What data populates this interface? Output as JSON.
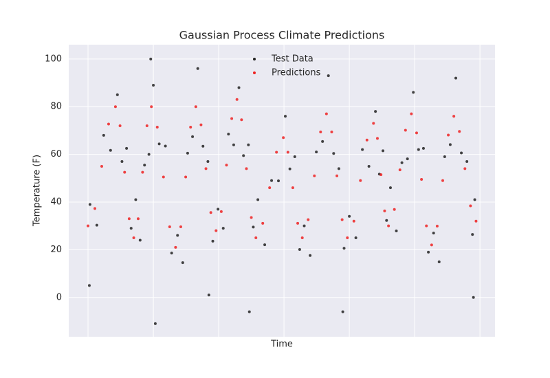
{
  "chart_data": {
    "type": "scatter",
    "title": "Gaussian Process Climate Predictions",
    "xlabel": "Time",
    "ylabel": "Temperature (F)",
    "xlim": [
      -29.5,
      623
    ],
    "ylim": [
      -16.5,
      106
    ],
    "xticks": [
      0,
      100,
      200,
      300,
      400,
      500,
      600
    ],
    "show_xtick_labels": false,
    "yticks": [
      0,
      20,
      40,
      60,
      80,
      100
    ],
    "grid": true,
    "legend": "upper center",
    "series": [
      {
        "name": "Test Data",
        "color": "#222222",
        "x": [
          3,
          13.5,
          24,
          34.5,
          45,
          52,
          59,
          66,
          73,
          79.75,
          86.5,
          93.25,
          100,
          109,
          118.5,
          128,
          137,
          145,
          152.5,
          160,
          168,
          176,
          183.5,
          191,
          199,
          207,
          215,
          223,
          231,
          238,
          245.5,
          253,
          260,
          270.5,
          281,
          291.5,
          302,
          309,
          316.5,
          324,
          331,
          340,
          349.5,
          359,
          368,
          376,
          384,
          392,
          400,
          410,
          420,
          430,
          440,
          446,
          451.5,
          457,
          463,
          472,
          480.5,
          489,
          498,
          506,
          513.5,
          521,
          529,
          537.5,
          546,
          554.5,
          563,
          571.5,
          580,
          588.5,
          592,
          2,
          96,
          103,
          185,
          247,
          390,
          590
        ],
        "values": [
          39,
          30.3,
          68,
          61.7,
          85,
          57,
          62.5,
          29,
          41,
          24,
          55.5,
          60,
          89,
          64.4,
          63.5,
          18.6,
          26,
          14.6,
          60.5,
          67.4,
          96,
          63.4,
          57,
          23.6,
          37,
          29,
          68.5,
          64,
          88,
          59.5,
          64,
          29.5,
          41,
          22.1,
          49,
          48.9,
          76,
          53.9,
          59,
          20.1,
          30,
          17.6,
          61,
          65.4,
          93,
          60.4,
          54,
          20.6,
          34,
          25,
          62,
          55,
          78,
          51.7,
          61.5,
          32.3,
          46,
          27.9,
          56.5,
          58.1,
          86,
          62,
          62.5,
          19,
          27,
          14.9,
          59,
          64.1,
          92,
          60.6,
          57,
          26.4,
          41,
          5,
          100,
          -11,
          1,
          -6,
          -6,
          0
        ]
      },
      {
        "name": "Predictions",
        "color": "#ee2222",
        "x": [
          0,
          10.5,
          21,
          31.5,
          42,
          49,
          56,
          63,
          70,
          76.75,
          83.5,
          90.25,
          97,
          106,
          115.5,
          125,
          134,
          142,
          149.5,
          157,
          165,
          173,
          180.5,
          188,
          196,
          204,
          212,
          220,
          228,
          235,
          242.5,
          250,
          257,
          267.5,
          278,
          288.5,
          299,
          306,
          313.5,
          321,
          328,
          337,
          346.5,
          356,
          365,
          373,
          381,
          389,
          397,
          407,
          417,
          427,
          437,
          443,
          448.5,
          454,
          460,
          469,
          477.5,
          486,
          495,
          503,
          510.5,
          518,
          526,
          534.5,
          543,
          551.5,
          560,
          568.5,
          577,
          585.5,
          594
        ],
        "values": [
          30,
          37.3,
          55,
          72.7,
          80,
          72,
          52.5,
          33,
          25,
          33,
          52.5,
          72,
          80,
          71.4,
          50.5,
          29.6,
          21,
          29.6,
          50.5,
          71.4,
          80,
          72.4,
          54,
          35.6,
          28,
          36,
          55.5,
          75,
          83,
          74.5,
          54,
          33.5,
          25,
          31.1,
          46,
          60.9,
          67,
          60.9,
          46,
          31.1,
          25,
          32.6,
          51,
          69.4,
          77,
          69.4,
          51,
          32.6,
          25,
          32,
          49,
          66,
          73,
          66.7,
          51.5,
          36.3,
          30,
          36.9,
          53.5,
          70.1,
          77,
          69,
          49.5,
          30,
          22,
          29.9,
          49,
          68.1,
          76,
          69.6,
          54,
          38.4,
          32
        ]
      }
    ]
  }
}
